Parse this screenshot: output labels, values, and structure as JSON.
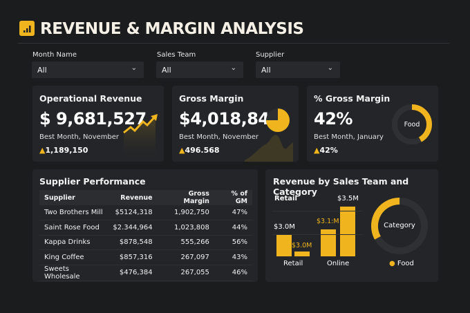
{
  "header": {
    "title": "REVENUE & MARGIN ANALYSIS",
    "logo_icon": "bar-chart-icon"
  },
  "filters": [
    {
      "label": "Month Name",
      "value": "All"
    },
    {
      "label": "Sales Team",
      "value": "All"
    },
    {
      "label": "Supplier",
      "value": "All"
    }
  ],
  "kpis": [
    {
      "title": "Operational Revenue",
      "value": "$ 9,681,527",
      "sub": "Best Month, November",
      "delta": "1,189,150"
    },
    {
      "title": "Gross Margin",
      "value": "$4,018,847",
      "sub": "Best Month, November",
      "delta": "496.568"
    },
    {
      "title": "% Gross Margin",
      "value": "42%",
      "sub": "Best Month, January",
      "delta": "42%",
      "donut_label": "Food",
      "donut_percent": 42
    }
  ],
  "colors": {
    "accent": "#f0b51e",
    "background": "#1b1c1e",
    "card": "#242528"
  },
  "supplier_table": {
    "title": "Supplier Performance",
    "columns": [
      "Supplier",
      "Revenue",
      "Gross Margin",
      "% of GM"
    ],
    "rows": [
      [
        "Two Brothers Mill",
        "$5124,318",
        "1,902,750",
        "47%"
      ],
      [
        "Saint Rose Food",
        "$2.344,964",
        "1,023,808",
        "44%"
      ],
      [
        "Kappa Drinks",
        "$878,548",
        "555,266",
        "56%"
      ],
      [
        "King Coffee",
        "$857,316",
        "267,097",
        "43%"
      ],
      [
        "Sweets Wholesale",
        "$476,384",
        "267,055",
        "46%"
      ]
    ]
  },
  "chart_data": {
    "type": "bar",
    "title": "Revenue by Sales Team and Category",
    "legend_title": "Retail",
    "categories": [
      "Retail",
      "Online"
    ],
    "bars": [
      {
        "group": "Retail",
        "value": 3.0,
        "label": "$3.0M"
      },
      {
        "group": "Retail",
        "value": 3.0,
        "label": "$3.0M"
      },
      {
        "group": "Online",
        "value": 3.1,
        "label": "$3.1:M"
      },
      {
        "group": "Online",
        "value": 3.5,
        "label": "$3.5M"
      }
    ],
    "unit": "$M",
    "donut": {
      "center_label": "Category",
      "legend": [
        "Food"
      ],
      "food_share_percent": 33
    }
  }
}
